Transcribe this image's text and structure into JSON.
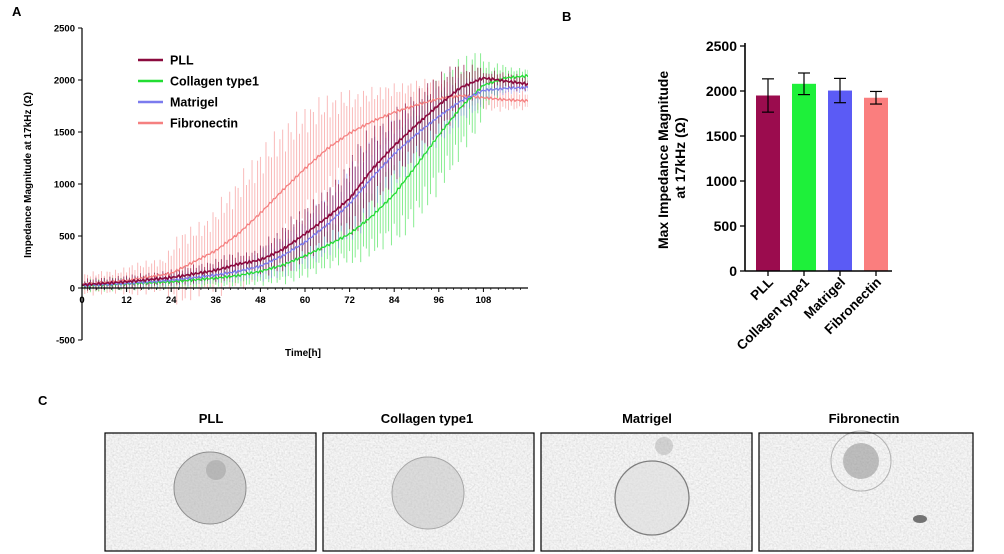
{
  "panels": {
    "a": "A",
    "b": "B",
    "c": "C"
  },
  "colors": {
    "PLL": "#8B0A3E",
    "Collagen type1": "#22DD33",
    "Matrigel": "#7B7BEE",
    "Fibronectin": "#F58080",
    "PLL_bar": "#9B0C4E",
    "Collagen_bar": "#1EF03A",
    "Matrigel_bar": "#5B5BF5",
    "Fibronectin_bar": "#FA7E7E"
  },
  "chart_data": [
    {
      "type": "line",
      "panel": "A",
      "xlabel": "Time[h]",
      "ylabel": "Impedance Magnitude at 17kHz (Ω)",
      "x_ticks": [
        "0",
        "12",
        "24",
        "36",
        "48",
        "60",
        "72",
        "84",
        "96",
        "108"
      ],
      "y_ticks": [
        "-500",
        "0",
        "500",
        "1000",
        "1500",
        "2000",
        "2500"
      ],
      "xlim": [
        0,
        120
      ],
      "ylim": [
        -500,
        2500
      ],
      "grid": false,
      "legend_position": "top-left",
      "error_bands": true,
      "series": [
        {
          "name": "PLL",
          "x": [
            0,
            12,
            24,
            36,
            42,
            48,
            54,
            60,
            66,
            72,
            78,
            84,
            90,
            96,
            102,
            108,
            114,
            120
          ],
          "y": [
            30,
            60,
            100,
            170,
            230,
            270,
            370,
            520,
            680,
            860,
            1140,
            1370,
            1570,
            1760,
            1930,
            2020,
            1990,
            1960
          ]
        },
        {
          "name": "Collagen type1",
          "x": [
            0,
            12,
            24,
            36,
            42,
            48,
            54,
            60,
            66,
            72,
            78,
            84,
            90,
            96,
            102,
            108,
            114,
            120
          ],
          "y": [
            20,
            40,
            60,
            95,
            120,
            160,
            220,
            310,
            410,
            520,
            690,
            900,
            1180,
            1470,
            1740,
            1950,
            2020,
            2040
          ]
        },
        {
          "name": "Matrigel",
          "x": [
            0,
            12,
            24,
            36,
            42,
            48,
            54,
            60,
            66,
            72,
            78,
            84,
            90,
            96,
            102,
            108,
            114,
            120
          ],
          "y": [
            25,
            45,
            75,
            125,
            160,
            210,
            310,
            440,
            610,
            810,
            1060,
            1290,
            1480,
            1650,
            1800,
            1900,
            1920,
            1930
          ]
        },
        {
          "name": "Fibronectin",
          "x": [
            0,
            12,
            24,
            36,
            42,
            48,
            54,
            60,
            66,
            72,
            78,
            84,
            90,
            96,
            102,
            108,
            114,
            120
          ],
          "y": [
            35,
            70,
            140,
            360,
            520,
            720,
            940,
            1150,
            1340,
            1490,
            1600,
            1690,
            1760,
            1820,
            1850,
            1830,
            1810,
            1800
          ]
        }
      ]
    },
    {
      "type": "bar",
      "panel": "B",
      "ylabel": "Max Impedance Magnitude\nat 17kHz (Ω)",
      "categories": [
        "PLL",
        "Collagen type1",
        "Matrigel",
        "Fibronectin"
      ],
      "values": [
        1950,
        2080,
        2005,
        1925
      ],
      "errors": [
        185,
        120,
        135,
        70
      ],
      "y_ticks": [
        "0",
        "500",
        "1000",
        "1500",
        "2000",
        "2500"
      ],
      "ylim": [
        0,
        2500
      ],
      "grid": false
    }
  ],
  "micrographs": {
    "titles": [
      "PLL",
      "Collagen type1",
      "Matrigel",
      "Fibronectin"
    ]
  }
}
